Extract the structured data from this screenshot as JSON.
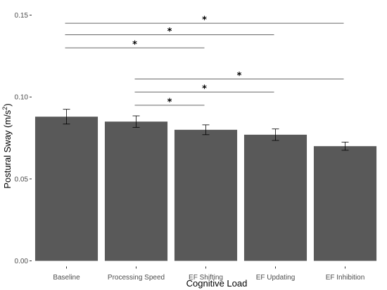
{
  "chart_data": {
    "type": "bar",
    "title": "",
    "xlabel": "Cognitive Load",
    "ylabel": "Postural Sway (m/s²)",
    "ylabel_parts": {
      "main": "Postural Sway (m/s",
      "sup": "2",
      "end": ")"
    },
    "categories": [
      "Baseline",
      "Processing Speed",
      "EF Shifting",
      "EF Updating",
      "EF Inhibition"
    ],
    "values": [
      0.088,
      0.085,
      0.08,
      0.077,
      0.07
    ],
    "errors": [
      0.0045,
      0.0035,
      0.003,
      0.0035,
      0.0025
    ],
    "ylim": [
      0,
      0.155
    ],
    "yticks": [
      0.0,
      0.05,
      0.1,
      0.15
    ],
    "ytick_labels": [
      "0.00",
      "0.05",
      "0.10",
      "0.15"
    ],
    "bar_color": "#595959",
    "significance": [
      {
        "from": 0,
        "to": 4,
        "y": 0.145,
        "label": "*"
      },
      {
        "from": 0,
        "to": 3,
        "y": 0.138,
        "label": "*"
      },
      {
        "from": 0,
        "to": 2,
        "y": 0.13,
        "label": "*"
      },
      {
        "from": 1,
        "to": 4,
        "y": 0.111,
        "label": "*"
      },
      {
        "from": 1,
        "to": 3,
        "y": 0.103,
        "label": "*"
      },
      {
        "from": 1,
        "to": 2,
        "y": 0.095,
        "label": "*"
      }
    ],
    "grid": false
  }
}
